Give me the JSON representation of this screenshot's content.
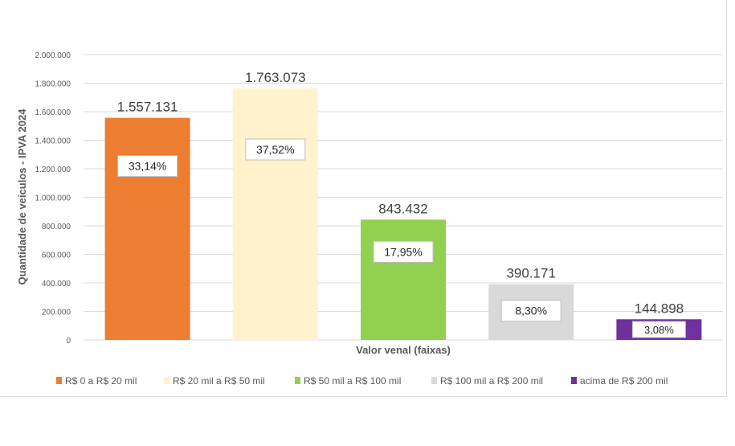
{
  "chart_data": {
    "type": "bar",
    "title": "",
    "xlabel": "Valor venal (faixas)",
    "ylabel": "Quantidade de veículos - IPVA 2024",
    "ylim": [
      0,
      2000000
    ],
    "yticks": [
      "0",
      "200.000",
      "400.000",
      "600.000",
      "800.000",
      "1.000.000",
      "1.200.000",
      "1.400.000",
      "1.600.000",
      "1.800.000",
      "2.000.000"
    ],
    "grid": true,
    "legend_position": "bottom",
    "categories": [
      "R$ 0 a R$ 20 mil",
      "R$ 20 mil a R$ 50 mil",
      "R$ 50 mil a R$ 100 mil",
      "R$ 100 mil a R$ 200 mil",
      "acima de R$ 200 mil"
    ],
    "values": [
      1557131,
      1763073,
      843432,
      390171,
      144898
    ],
    "value_labels": [
      "1.557.131",
      "1.763.073",
      "843.432",
      "390.171",
      "144.898"
    ],
    "percent_labels": [
      "33,14%",
      "37,52%",
      "17,95%",
      "8,30%",
      "3,08%"
    ],
    "colors": [
      "#ED7D31",
      "#FFF2CC",
      "#92D050",
      "#D9D9D9",
      "#7030A0"
    ]
  }
}
